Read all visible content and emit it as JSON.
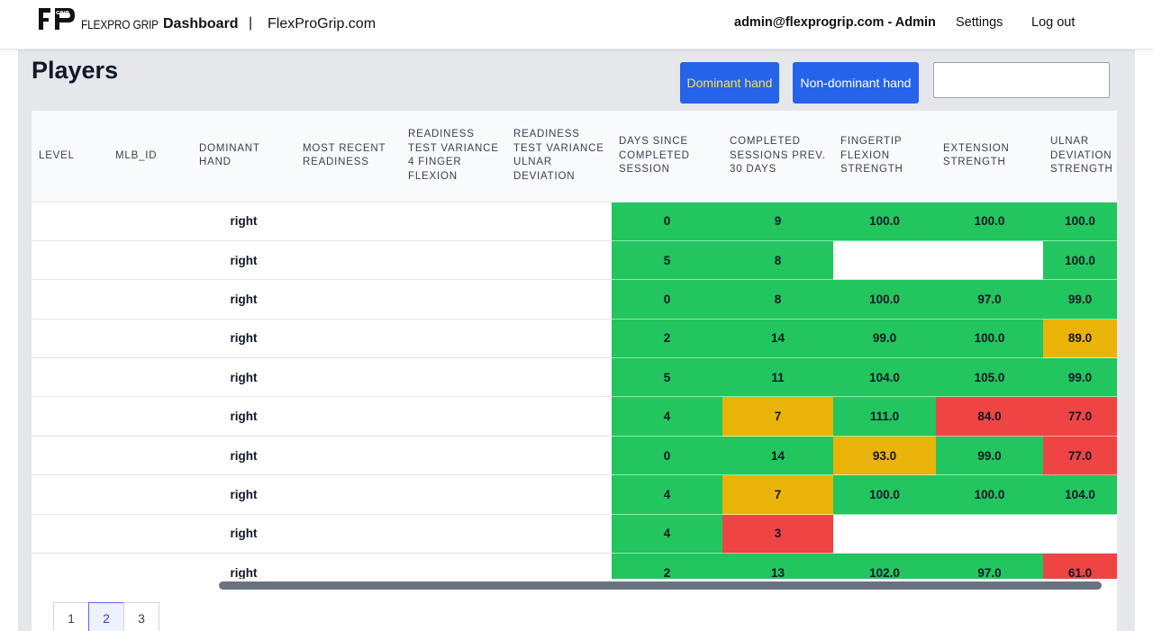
{
  "nav": {
    "logo_text": "GRIP",
    "brand": "FLEXPRO GRIP",
    "dashboard": "Dashboard",
    "separator": "|",
    "site": "FlexProGrip.com",
    "user": "admin@flexprogrip.com - Admin",
    "settings": "Settings",
    "logout": "Log out"
  },
  "page": {
    "title": "Players",
    "dominant_button": "Dominant hand",
    "nondominant_button": "Non-dominant hand",
    "search_value": "",
    "search_placeholder": ""
  },
  "colors": {
    "green": "#22c55e",
    "yellow": "#eab308",
    "red": "#ef4444",
    "button_blue": "#2563eb"
  },
  "table": {
    "columns": [
      "LEVEL",
      "MLB_ID",
      "DOMINANT HAND",
      "MOST RECENT READINESS",
      "READINESS TEST VARIANCE 4 FINGER FLEXION",
      "READINESS TEST VARIANCE ULNAR DEVIATION",
      "DAYS SINCE COMPLETED SESSION",
      "COMPLETED SESSIONS PREV. 30 DAYS",
      "FINGERTIP FLEXION STRENGTH",
      "EXTENSION STRENGTH",
      "ULNAR DEVIATION STRENGTH"
    ],
    "rows": [
      {
        "level": "",
        "mlb_id": "",
        "hand": "right",
        "readiness": "",
        "var_flex": "",
        "var_ulnar": "",
        "days": "0",
        "days_status": "green",
        "sessions": "9",
        "sessions_status": "green",
        "flexion": "100.0",
        "flexion_status": "green",
        "extension": "100.0",
        "extension_status": "green",
        "ulnar": "100.0",
        "ulnar_status": "green"
      },
      {
        "level": "",
        "mlb_id": "",
        "hand": "right",
        "readiness": "",
        "var_flex": "",
        "var_ulnar": "",
        "days": "5",
        "days_status": "green",
        "sessions": "8",
        "sessions_status": "green",
        "flexion": "",
        "flexion_status": "none",
        "extension": "",
        "extension_status": "none",
        "ulnar": "100.0",
        "ulnar_status": "green"
      },
      {
        "level": "",
        "mlb_id": "",
        "hand": "right",
        "readiness": "",
        "var_flex": "",
        "var_ulnar": "",
        "days": "0",
        "days_status": "green",
        "sessions": "8",
        "sessions_status": "green",
        "flexion": "100.0",
        "flexion_status": "green",
        "extension": "97.0",
        "extension_status": "green",
        "ulnar": "99.0",
        "ulnar_status": "green"
      },
      {
        "level": "",
        "mlb_id": "",
        "hand": "right",
        "readiness": "",
        "var_flex": "",
        "var_ulnar": "",
        "days": "2",
        "days_status": "green",
        "sessions": "14",
        "sessions_status": "green",
        "flexion": "99.0",
        "flexion_status": "green",
        "extension": "100.0",
        "extension_status": "green",
        "ulnar": "89.0",
        "ulnar_status": "yellow"
      },
      {
        "level": "",
        "mlb_id": "",
        "hand": "right",
        "readiness": "",
        "var_flex": "",
        "var_ulnar": "",
        "days": "5",
        "days_status": "green",
        "sessions": "11",
        "sessions_status": "green",
        "flexion": "104.0",
        "flexion_status": "green",
        "extension": "105.0",
        "extension_status": "green",
        "ulnar": "99.0",
        "ulnar_status": "green"
      },
      {
        "level": "",
        "mlb_id": "",
        "hand": "right",
        "readiness": "",
        "var_flex": "",
        "var_ulnar": "",
        "days": "4",
        "days_status": "green",
        "sessions": "7",
        "sessions_status": "yellow",
        "flexion": "111.0",
        "flexion_status": "green",
        "extension": "84.0",
        "extension_status": "red",
        "ulnar": "77.0",
        "ulnar_status": "red"
      },
      {
        "level": "",
        "mlb_id": "",
        "hand": "right",
        "readiness": "",
        "var_flex": "",
        "var_ulnar": "",
        "days": "0",
        "days_status": "green",
        "sessions": "14",
        "sessions_status": "green",
        "flexion": "93.0",
        "flexion_status": "yellow",
        "extension": "99.0",
        "extension_status": "green",
        "ulnar": "77.0",
        "ulnar_status": "red"
      },
      {
        "level": "",
        "mlb_id": "",
        "hand": "right",
        "readiness": "",
        "var_flex": "",
        "var_ulnar": "",
        "days": "4",
        "days_status": "green",
        "sessions": "7",
        "sessions_status": "yellow",
        "flexion": "100.0",
        "flexion_status": "green",
        "extension": "100.0",
        "extension_status": "green",
        "ulnar": "104.0",
        "ulnar_status": "green"
      },
      {
        "level": "",
        "mlb_id": "",
        "hand": "right",
        "readiness": "",
        "var_flex": "",
        "var_ulnar": "",
        "days": "4",
        "days_status": "green",
        "sessions": "3",
        "sessions_status": "red",
        "flexion": "",
        "flexion_status": "none",
        "extension": "",
        "extension_status": "none",
        "ulnar": "",
        "ulnar_status": "none"
      },
      {
        "level": "",
        "mlb_id": "",
        "hand": "right",
        "readiness": "",
        "var_flex": "",
        "var_ulnar": "",
        "days": "2",
        "days_status": "green",
        "sessions": "13",
        "sessions_status": "green",
        "flexion": "102.0",
        "flexion_status": "green",
        "extension": "97.0",
        "extension_status": "green",
        "ulnar": "61.0",
        "ulnar_status": "red"
      }
    ]
  },
  "pagination": {
    "pages": [
      "1",
      "2",
      "3"
    ],
    "current": "2"
  }
}
